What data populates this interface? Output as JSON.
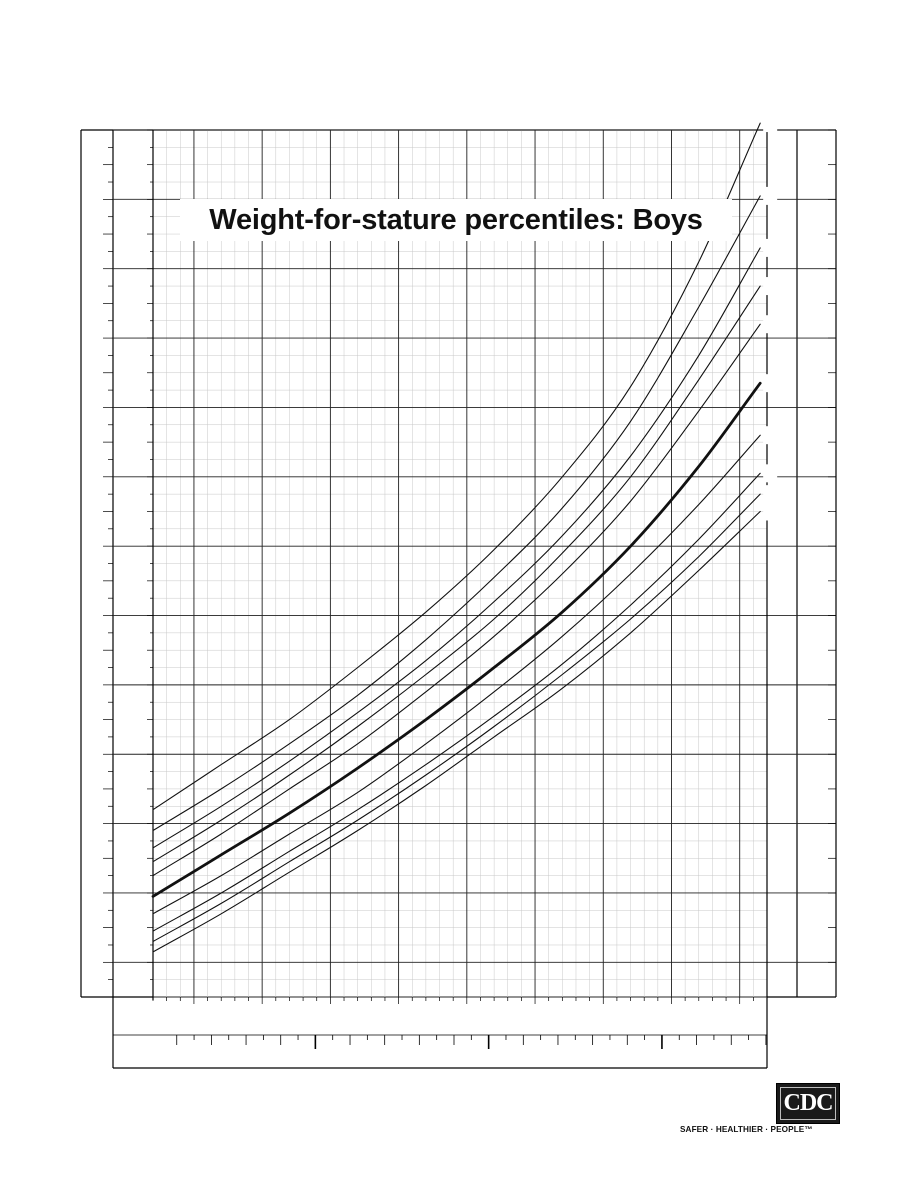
{
  "chart_data": {
    "type": "line",
    "title": "Weight-for-stature percentiles: Boys",
    "xlabel": "",
    "ylabel": "",
    "grid": true,
    "legend": "none",
    "x_unit": "cm",
    "y_unit": "kg",
    "xlim": [
      77,
      122
    ],
    "ylim": [
      7,
      32
    ],
    "x": [
      77,
      82,
      87,
      92,
      97,
      102,
      107,
      112,
      117,
      121.5
    ],
    "series": [
      {
        "line": "thin",
        "values": [
          12.4,
          13.7,
          15.0,
          16.5,
          18.1,
          19.9,
          22.0,
          24.6,
          28.2,
          32.2
        ]
      },
      {
        "line": "thin",
        "values": [
          11.8,
          13.0,
          14.3,
          15.7,
          17.3,
          19.1,
          21.1,
          23.6,
          26.9,
          30.1
        ]
      },
      {
        "line": "thin",
        "values": [
          11.3,
          12.5,
          13.8,
          15.2,
          16.7,
          18.4,
          20.3,
          22.6,
          25.5,
          28.6
        ]
      },
      {
        "line": "thin",
        "values": [
          10.9,
          12.1,
          13.4,
          14.8,
          16.3,
          17.9,
          19.8,
          22.0,
          24.8,
          27.5
        ]
      },
      {
        "line": "thin",
        "values": [
          10.5,
          11.7,
          13.0,
          14.3,
          15.8,
          17.4,
          19.2,
          21.3,
          23.9,
          26.4
        ]
      },
      {
        "line": "thick",
        "values": [
          9.9,
          11.1,
          12.3,
          13.6,
          15.0,
          16.5,
          18.1,
          20.0,
          22.3,
          24.7
        ]
      },
      {
        "line": "thin",
        "values": [
          9.4,
          10.5,
          11.7,
          12.9,
          14.3,
          15.8,
          17.4,
          19.2,
          21.2,
          23.2
        ]
      },
      {
        "line": "thin",
        "values": [
          8.9,
          10.0,
          11.2,
          12.4,
          13.7,
          15.1,
          16.6,
          18.3,
          20.2,
          22.1
        ]
      },
      {
        "line": "thin",
        "values": [
          8.6,
          9.7,
          10.9,
          12.1,
          13.4,
          14.8,
          16.3,
          17.9,
          19.7,
          21.5
        ]
      },
      {
        "line": "thin",
        "values": [
          8.3,
          9.4,
          10.6,
          11.8,
          13.1,
          14.5,
          15.9,
          17.5,
          19.3,
          21.0
        ]
      }
    ]
  },
  "logo": {
    "text": "CDC",
    "tagline": "SAFER · HEALTHIER · PEOPLE™"
  }
}
